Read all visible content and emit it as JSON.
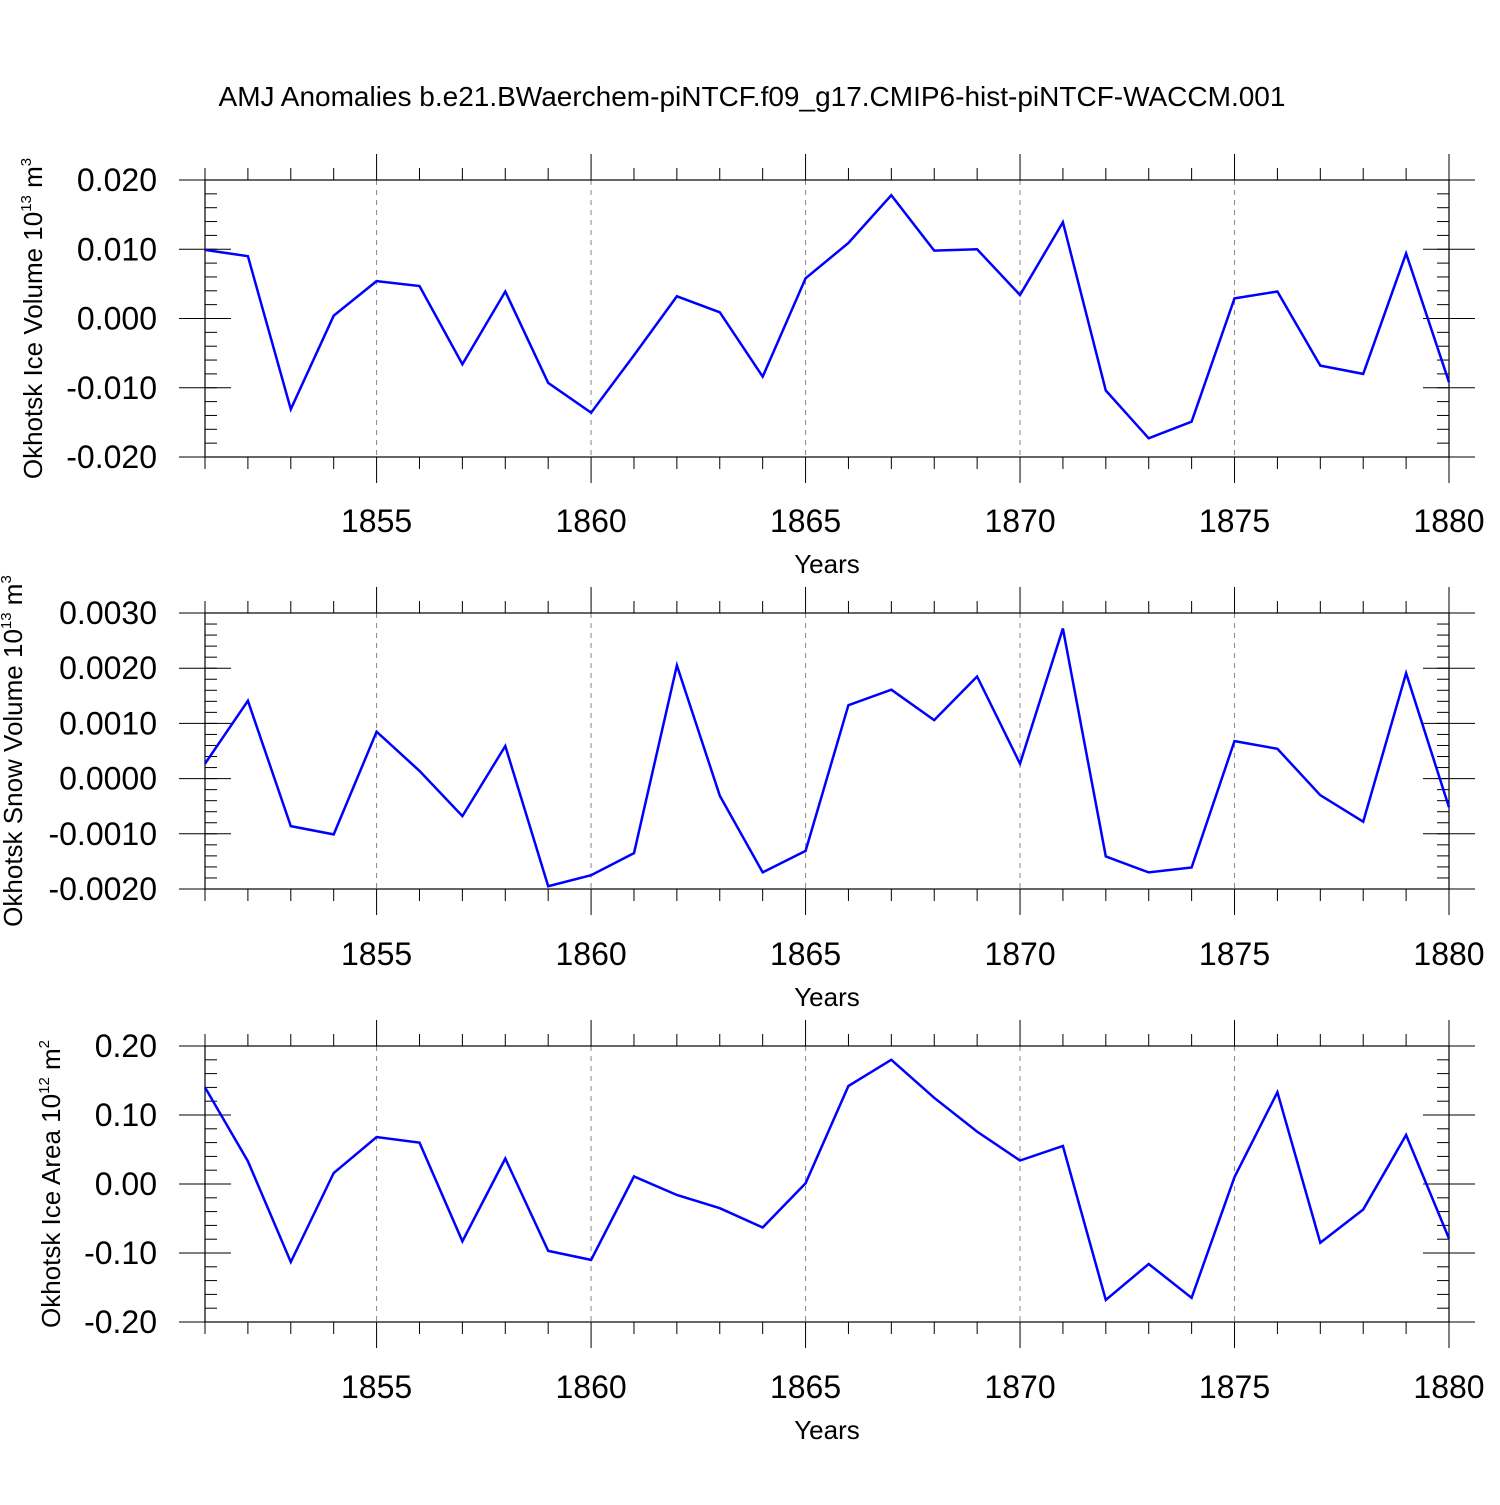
{
  "title": "AMJ Anomalies b.e21.BWaerchem-piNTCF.f09_g17.CMIP6-hist-piNTCF-WACCM.001",
  "colors": {
    "series": "#0000ff",
    "grid": "#888888",
    "axis": "#000000"
  },
  "chart_data": [
    {
      "type": "line",
      "ylabel": {
        "text": "Okhotsk Ice Volume 10",
        "exp": "13",
        "unit": " m",
        "unit_exp": "3"
      },
      "xlabel": "Years",
      "xlim": [
        1851,
        1880
      ],
      "ylim": [
        -0.02,
        0.02
      ],
      "ymajor_ticks": [
        -0.02,
        -0.01,
        0.0,
        0.01,
        0.02
      ],
      "ytick_labels": [
        "-0.020",
        "-0.010",
        "0.000",
        "0.010",
        "0.020"
      ],
      "yminor_step": 0.002,
      "xticks": [
        1855,
        1860,
        1865,
        1870,
        1875,
        1880
      ],
      "xtick_labels": [
        "1855",
        "1860",
        "1865",
        "1870",
        "1875",
        "1880"
      ],
      "x": [
        1851,
        1852,
        1853,
        1854,
        1855,
        1856,
        1857,
        1858,
        1859,
        1860,
        1861,
        1862,
        1863,
        1864,
        1865,
        1866,
        1867,
        1868,
        1869,
        1870,
        1871,
        1872,
        1873,
        1874,
        1875,
        1876,
        1877,
        1878,
        1879,
        1880
      ],
      "values": [
        0.0099,
        0.009,
        -0.0131,
        0.0004,
        0.0054,
        0.0047,
        -0.0066,
        0.0039,
        -0.0093,
        -0.0136,
        -0.0053,
        0.0032,
        0.0009,
        -0.0084,
        0.0058,
        0.0109,
        0.0178,
        0.0098,
        0.01,
        0.0034,
        0.0139,
        -0.0104,
        -0.0173,
        -0.0149,
        0.0029,
        0.0039,
        -0.0068,
        -0.008,
        0.0094,
        -0.0092
      ]
    },
    {
      "type": "line",
      "ylabel": {
        "text": "Okhotsk Snow Volume 10",
        "exp": "13",
        "unit": " m",
        "unit_exp": "3"
      },
      "xlabel": "Years",
      "xlim": [
        1851,
        1880
      ],
      "ylim": [
        -0.002,
        0.003
      ],
      "ymajor_ticks": [
        -0.002,
        -0.001,
        0.0,
        0.001,
        0.002,
        0.003
      ],
      "ytick_labels": [
        "-0.0020",
        "-0.0010",
        "0.0000",
        "0.0010",
        "0.0020",
        "0.0030"
      ],
      "yminor_step": 0.0002,
      "xticks": [
        1855,
        1860,
        1865,
        1870,
        1875,
        1880
      ],
      "xtick_labels": [
        "1855",
        "1860",
        "1865",
        "1870",
        "1875",
        "1880"
      ],
      "x": [
        1851,
        1852,
        1853,
        1854,
        1855,
        1856,
        1857,
        1858,
        1859,
        1860,
        1861,
        1862,
        1863,
        1864,
        1865,
        1866,
        1867,
        1868,
        1869,
        1870,
        1871,
        1872,
        1873,
        1874,
        1875,
        1876,
        1877,
        1878,
        1879,
        1880
      ],
      "values": [
        0.00027,
        0.00141,
        -0.00086,
        -0.00101,
        0.00085,
        0.00014,
        -0.00068,
        0.00059,
        -0.00195,
        -0.00175,
        -0.00135,
        0.00205,
        -0.00031,
        -0.0017,
        -0.00131,
        0.00133,
        0.00161,
        0.00106,
        0.00185,
        0.00027,
        0.00272,
        -0.00141,
        -0.0017,
        -0.00161,
        0.00068,
        0.00054,
        -0.0003,
        -0.00078,
        0.00191,
        -0.00052
      ]
    },
    {
      "type": "line",
      "ylabel": {
        "text": "Okhotsk Ice Area 10",
        "exp": "12",
        "unit": " m",
        "unit_exp": "2"
      },
      "xlabel": "Years",
      "xlim": [
        1851,
        1880
      ],
      "ylim": [
        -0.2,
        0.2
      ],
      "ymajor_ticks": [
        -0.2,
        -0.1,
        0.0,
        0.1,
        0.2
      ],
      "ytick_labels": [
        "-0.20",
        "-0.10",
        "0.00",
        "0.10",
        "0.20"
      ],
      "yminor_step": 0.02,
      "xticks": [
        1855,
        1860,
        1865,
        1870,
        1875,
        1880
      ],
      "xtick_labels": [
        "1855",
        "1860",
        "1865",
        "1870",
        "1875",
        "1880"
      ],
      "x": [
        1851,
        1852,
        1853,
        1854,
        1855,
        1856,
        1857,
        1858,
        1859,
        1860,
        1861,
        1862,
        1863,
        1864,
        1865,
        1866,
        1867,
        1868,
        1869,
        1870,
        1871,
        1872,
        1873,
        1874,
        1875,
        1876,
        1877,
        1878,
        1879,
        1880
      ],
      "values": [
        0.14,
        0.033,
        -0.113,
        0.016,
        0.068,
        0.06,
        -0.083,
        0.037,
        -0.097,
        -0.11,
        0.011,
        -0.016,
        -0.035,
        -0.063,
        0.001,
        0.142,
        0.18,
        0.125,
        0.076,
        0.034,
        0.055,
        -0.168,
        -0.116,
        -0.165,
        0.01,
        0.133,
        -0.085,
        -0.037,
        0.071,
        -0.079
      ]
    }
  ]
}
